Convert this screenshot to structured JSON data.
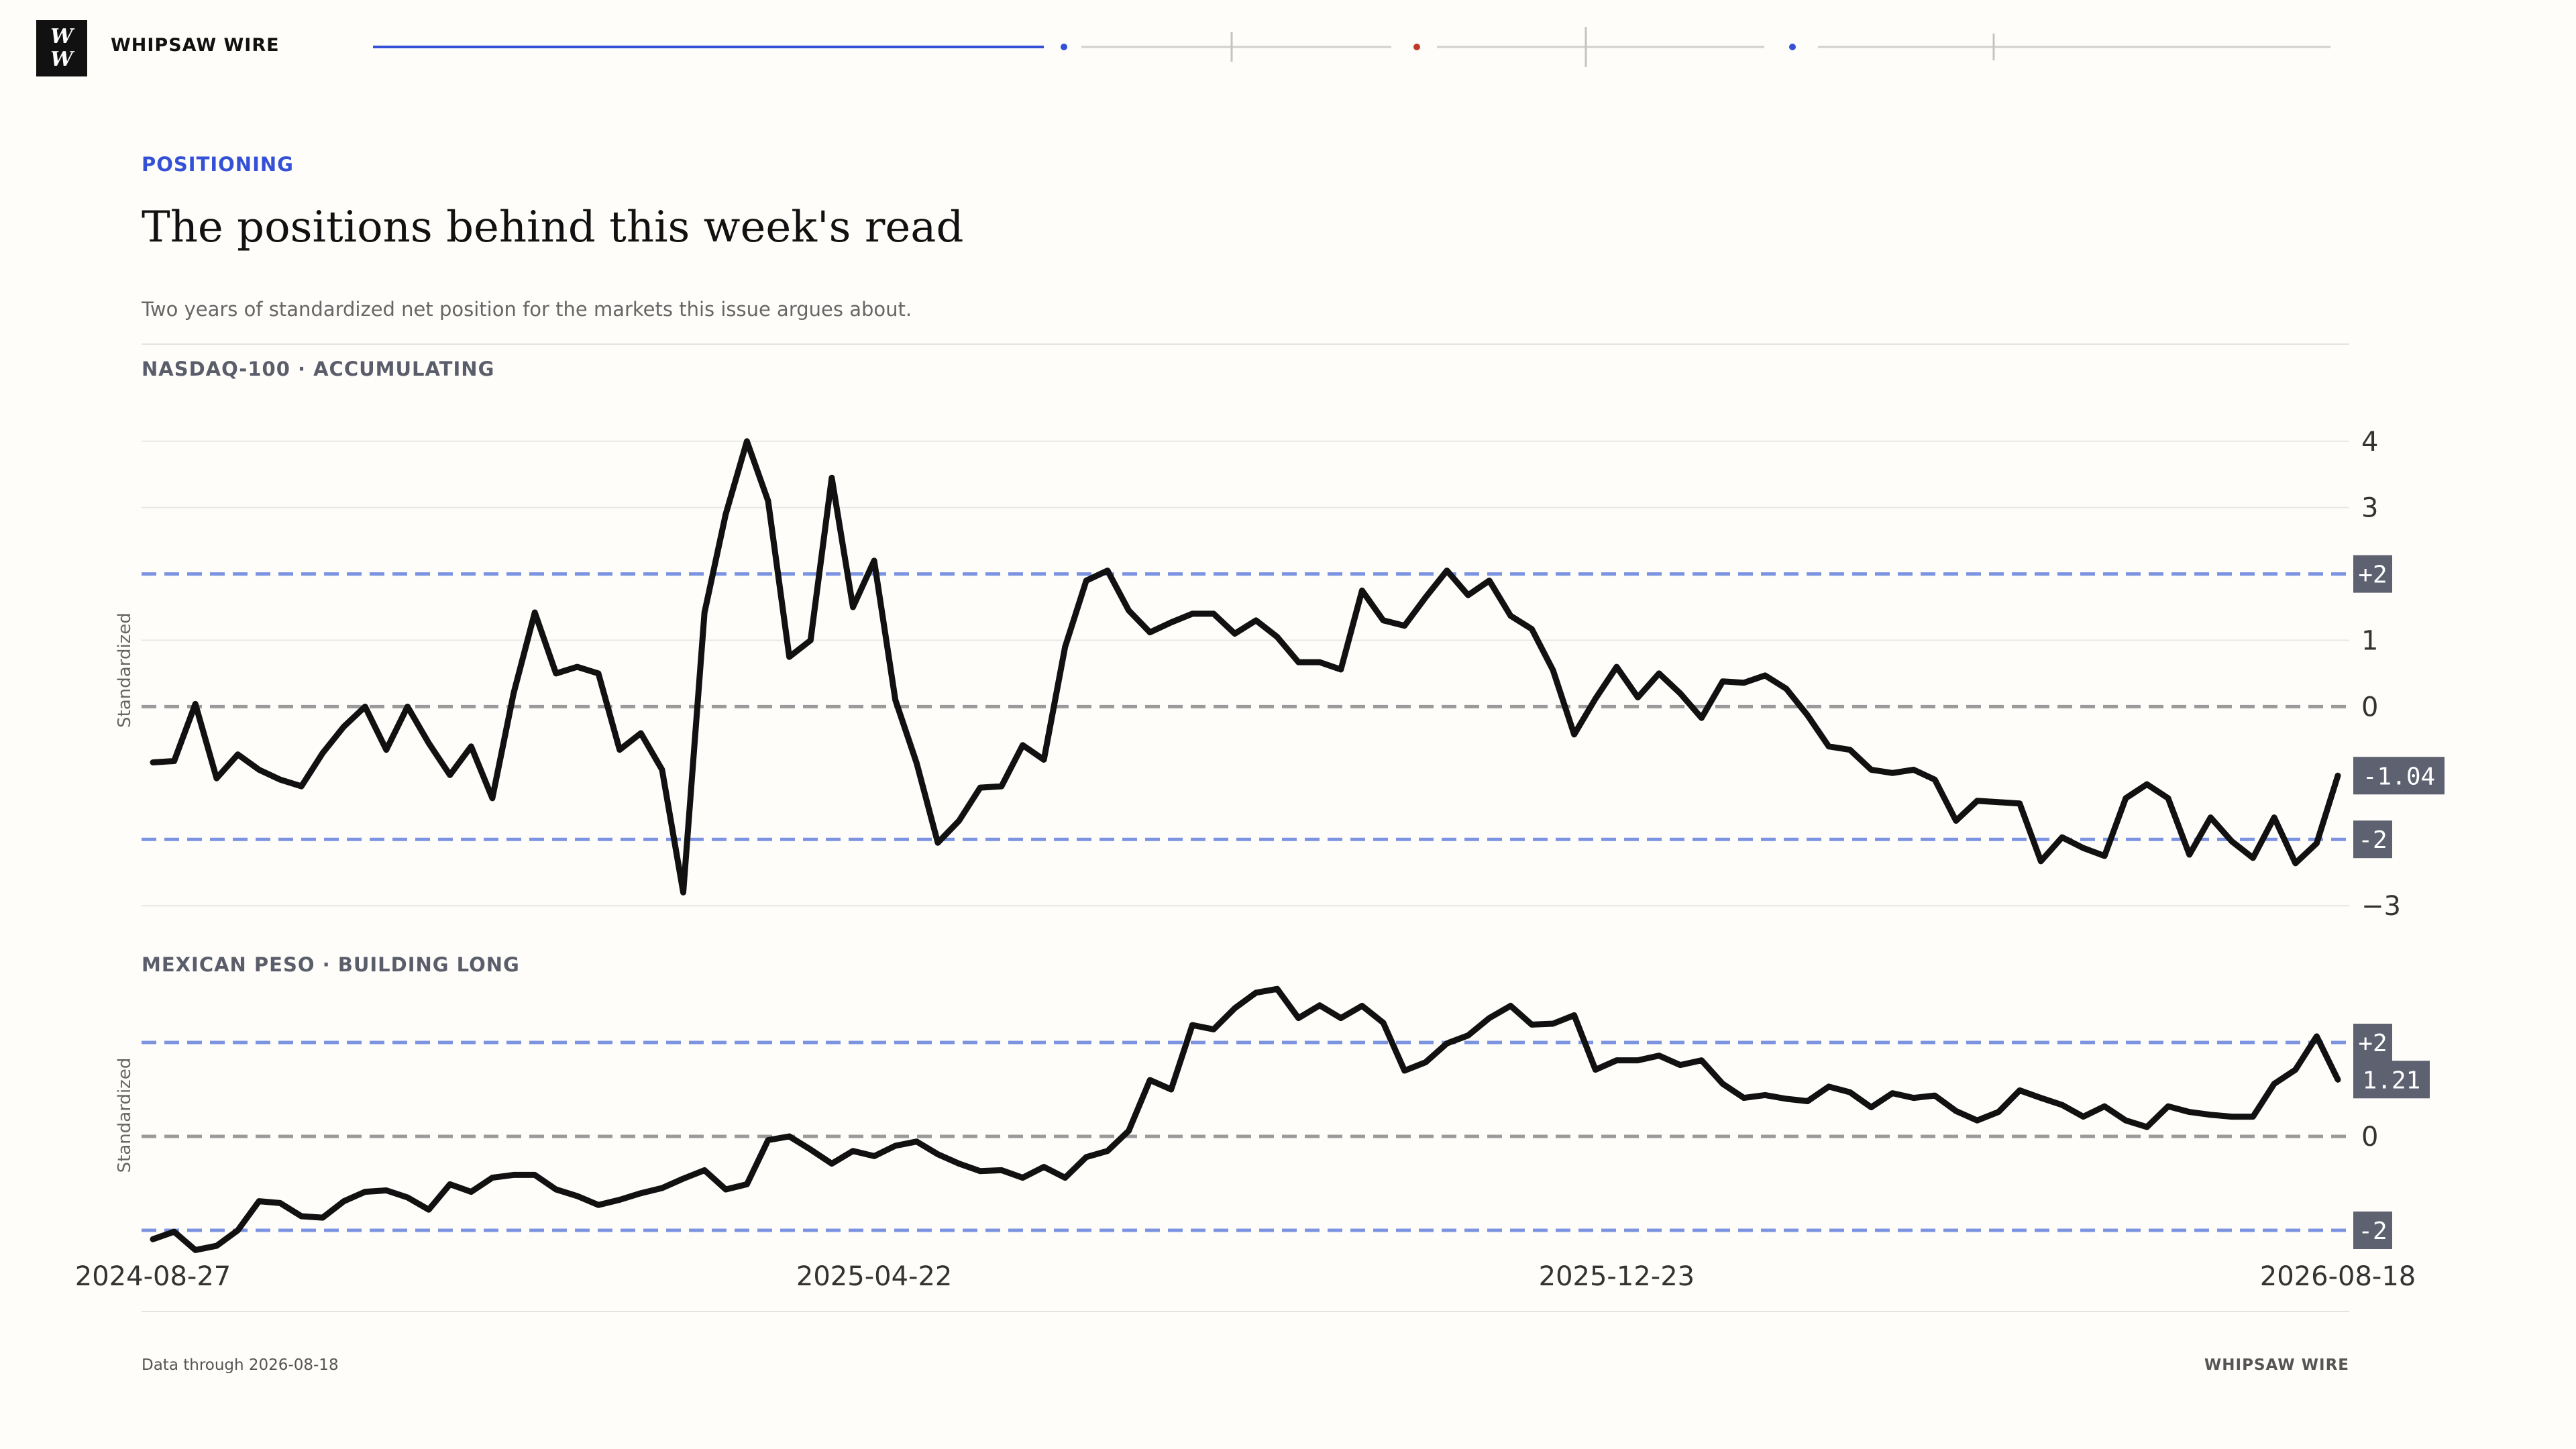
{
  "brand": {
    "logo_line1": "W",
    "logo_line2": "W",
    "name": "WHIPSAW WIRE"
  },
  "header": {
    "kicker": "POSITIONING",
    "title": "The positions behind this week's read",
    "subtitle": "Two years of standardized net position for the markets this issue argues about."
  },
  "footer": {
    "data_through": "Data through 2026-08-18",
    "brand": "WHIPSAW WIRE"
  },
  "colors": {
    "line": "#111111",
    "threshold": "#7b93e0",
    "zero": "#9a9a9a",
    "badge": "#5d6170",
    "accent": "#3350d6",
    "marker_red": "#c0392b"
  },
  "chart_data": [
    {
      "type": "line",
      "title": "NASDAQ-100 · ACCUMULATING",
      "ylabel": "Standardized",
      "ylim": [
        -3.1,
        4.2
      ],
      "y_ticks": [
        4,
        3,
        1,
        0,
        -3
      ],
      "y_tick_labels": [
        "4",
        "3",
        "1",
        "0",
        "−3"
      ],
      "reference_lines": [
        {
          "value": 2,
          "label": "+2",
          "style": "threshold"
        },
        {
          "value": 0,
          "label": "",
          "style": "zero"
        },
        {
          "value": -2,
          "label": "-2",
          "style": "threshold"
        }
      ],
      "last_value_label": "-1.04",
      "x_start": "2024-08-27",
      "x_end": "2026-08-18",
      "x_tick_labels": [
        "2024-08-27",
        "2025-04-22",
        "2025-12-23",
        "2026-08-18"
      ],
      "series": [
        {
          "values": [
            -0.84,
            -0.82,
            0.04,
            -1.08,
            -0.72,
            -0.95,
            -1.1,
            -1.2,
            -0.7,
            -0.3,
            0.0,
            -0.65,
            0.0,
            -0.55,
            -1.03,
            -0.6,
            -1.38,
            0.2,
            1.42,
            0.5,
            0.6,
            0.5,
            -0.65,
            -0.4,
            -0.95,
            -2.8,
            1.42,
            2.9,
            4.0,
            3.1,
            0.75,
            1.0,
            3.45,
            1.5,
            2.2,
            0.1,
            -0.85,
            -2.05,
            -1.72,
            -1.22,
            -1.2,
            -0.58,
            -0.8,
            0.9,
            1.9,
            2.05,
            1.45,
            1.12,
            1.27,
            1.4,
            1.4,
            1.1,
            1.3,
            1.05,
            0.67,
            0.67,
            0.56,
            1.75,
            1.3,
            1.22,
            1.65,
            2.05,
            1.68,
            1.9,
            1.37,
            1.17,
            0.55,
            -0.42,
            0.12,
            0.6,
            0.14,
            0.5,
            0.2,
            -0.17,
            0.38,
            0.36,
            0.47,
            0.27,
            -0.13,
            -0.6,
            -0.65,
            -0.95,
            -1.0,
            -0.95,
            -1.1,
            -1.72,
            -1.42,
            -1.44,
            -1.46,
            -2.33,
            -1.97,
            -2.13,
            -2.25,
            -1.38,
            -1.17,
            -1.38,
            -2.23,
            -1.67,
            -2.03,
            -2.28,
            -1.67,
            -2.36,
            -2.06,
            -1.04
          ]
        }
      ]
    },
    {
      "type": "line",
      "title": "MEXICAN PESO · BUILDING LONG",
      "ylabel": "Standardized",
      "ylim": [
        -2.3,
        3.2
      ],
      "y_ticks": [
        0
      ],
      "y_tick_labels": [
        "0"
      ],
      "reference_lines": [
        {
          "value": 2,
          "label": "+2",
          "style": "threshold"
        },
        {
          "value": 0,
          "label": "",
          "style": "zero"
        },
        {
          "value": -2,
          "label": "-2",
          "style": "threshold"
        }
      ],
      "last_value_label": "1.21",
      "x_start": "2024-08-27",
      "x_end": "2026-08-18",
      "x_tick_labels": [
        "2024-08-27",
        "2025-04-22",
        "2025-12-23",
        "2026-08-18"
      ],
      "series": [
        {
          "values": [
            -2.19,
            -2.03,
            -2.42,
            -2.33,
            -2.0,
            -1.38,
            -1.42,
            -1.7,
            -1.73,
            -1.38,
            -1.18,
            -1.15,
            -1.3,
            -1.56,
            -1.02,
            -1.18,
            -0.88,
            -0.82,
            -0.82,
            -1.13,
            -1.27,
            -1.46,
            -1.35,
            -1.21,
            -1.1,
            -0.9,
            -0.72,
            -1.13,
            -1.02,
            -0.08,
            0.0,
            -0.28,
            -0.58,
            -0.31,
            -0.42,
            -0.2,
            -0.11,
            -0.38,
            -0.58,
            -0.74,
            -0.72,
            -0.88,
            -0.65,
            -0.88,
            -0.44,
            -0.31,
            0.12,
            1.2,
            1.0,
            2.37,
            2.28,
            2.73,
            3.06,
            3.14,
            2.52,
            2.79,
            2.52,
            2.78,
            2.42,
            1.4,
            1.58,
            1.98,
            2.15,
            2.52,
            2.78,
            2.38,
            2.4,
            2.58,
            1.42,
            1.62,
            1.62,
            1.72,
            1.52,
            1.62,
            1.12,
            0.82,
            0.88,
            0.8,
            0.75,
            1.06,
            0.94,
            0.62,
            0.92,
            0.82,
            0.87,
            0.54,
            0.34,
            0.52,
            0.98,
            0.82,
            0.67,
            0.42,
            0.64,
            0.34,
            0.2,
            0.64,
            0.52,
            0.46,
            0.42,
            0.42,
            1.12,
            1.42,
            2.13,
            1.21
          ]
        }
      ]
    }
  ]
}
